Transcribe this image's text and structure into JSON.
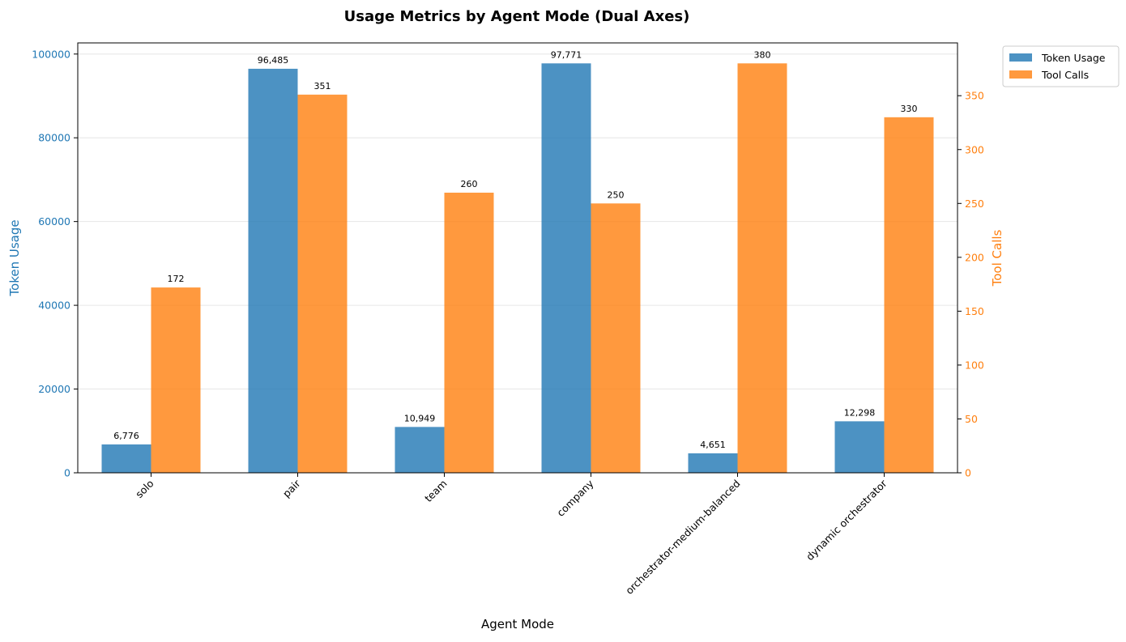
{
  "chart_data": {
    "type": "bar",
    "title": "Usage Metrics by Agent Mode (Dual Axes)",
    "xlabel": "Agent Mode",
    "categories": [
      "solo",
      "pair",
      "team",
      "company",
      "orchestrator-medium-balanced",
      "dynamic orchestrator"
    ],
    "series": [
      {
        "name": "Token Usage",
        "axis": "left",
        "color": "#1f77b4",
        "values": [
          6776,
          96485,
          10949,
          97771,
          4651,
          12298
        ],
        "labels": [
          "6,776",
          "96,485",
          "10,949",
          "97,771",
          "4,651",
          "12,298"
        ]
      },
      {
        "name": "Tool Calls",
        "axis": "right",
        "color": "#ff7f0e",
        "values": [
          172,
          351,
          260,
          250,
          380,
          330
        ],
        "labels": [
          "172",
          "351",
          "260",
          "250",
          "380",
          "330"
        ]
      }
    ],
    "y_left": {
      "label": "Token Usage",
      "color": "#1f77b4",
      "range": [
        0,
        102659
      ],
      "ticks": [
        0,
        20000,
        40000,
        60000,
        80000,
        100000
      ],
      "tick_labels": [
        "0",
        "20000",
        "40000",
        "60000",
        "80000",
        "100000"
      ]
    },
    "y_right": {
      "label": "Tool Calls",
      "color": "#ff7f0e",
      "range": [
        0,
        399
      ],
      "ticks": [
        0,
        50,
        100,
        150,
        200,
        250,
        300,
        350
      ],
      "tick_labels": [
        "0",
        "50",
        "100",
        "150",
        "200",
        "250",
        "300",
        "350"
      ]
    },
    "grid": "horizontal",
    "legend_position": "outside top-right"
  }
}
